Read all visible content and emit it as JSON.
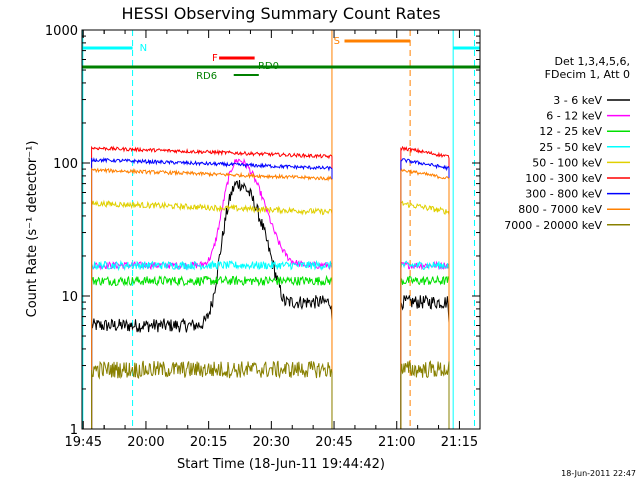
{
  "chart_data": {
    "type": "line",
    "title": "HESSI Observing Summary Count Rates",
    "xlabel": "Start Time (18-Jun-11 19:44:42)",
    "ylabel": "Count Rate (s⁻¹ detector⁻¹)",
    "yscale": "log",
    "ylim": [
      1,
      1000
    ],
    "xlim_minutes": [
      19.745,
      21.332
    ],
    "x_ticks": [
      "19:45",
      "20:00",
      "20:15",
      "20:30",
      "20:45",
      "21:00",
      "21:15"
    ],
    "y_ticks": [
      "1",
      "10",
      "100",
      "1000"
    ],
    "timestamp": "18-Jun-2011 22:47",
    "legend_header": [
      "Det 1,3,4,5,6,",
      "FDecim 1, Att 0"
    ],
    "legend_position": "right",
    "flag_labels": {
      "night_start": "N",
      "saa": "S",
      "flare": "F",
      "rd0": "RD0",
      "rd6": "RD6"
    },
    "series": [
      {
        "name": "3 - 6 keV",
        "color": "#000000",
        "base": 6.0,
        "noise": 0.12,
        "peak": 70
      },
      {
        "name": "6 - 12 keV",
        "color": "#ff00ff",
        "base": 17.0,
        "noise": 0.06,
        "peak": 105
      },
      {
        "name": "12 - 25 keV",
        "color": "#00e000",
        "base": 13.0,
        "noise": 0.08,
        "peak": 14
      },
      {
        "name": "25 - 50 keV",
        "color": "#00ffff",
        "base": 17.0,
        "noise": 0.07,
        "peak": 18
      },
      {
        "name": "50 - 100 keV",
        "color": "#e0d000",
        "base": 46.0,
        "noise": 0.05,
        "peak": 46
      },
      {
        "name": "100 - 300 keV",
        "color": "#ff0000",
        "base": 120.0,
        "noise": 0.03,
        "peak": 120
      },
      {
        "name": "300 - 800 keV",
        "color": "#0000ff",
        "base": 98.0,
        "noise": 0.03,
        "peak": 98
      },
      {
        "name": "800 - 7000 keV",
        "color": "#ff8000",
        "base": 82.0,
        "noise": 0.03,
        "peak": 82
      },
      {
        "name": "7000 - 20000 keV",
        "color": "#888000",
        "base": 2.8,
        "noise": 0.15,
        "peak": 2.8
      }
    ],
    "observing_windows": [
      {
        "start": "19:47:00",
        "end": "20:44:30"
      },
      {
        "start": "21:01:00",
        "end": "21:12:30"
      }
    ],
    "flare_peak_time": "20:22:00"
  },
  "colors": {
    "night": "#00ffff",
    "saa": "#ff8000",
    "flare": "#ff0000",
    "rd0": "#008000",
    "rd6": "#008000",
    "axis": "#000000"
  }
}
